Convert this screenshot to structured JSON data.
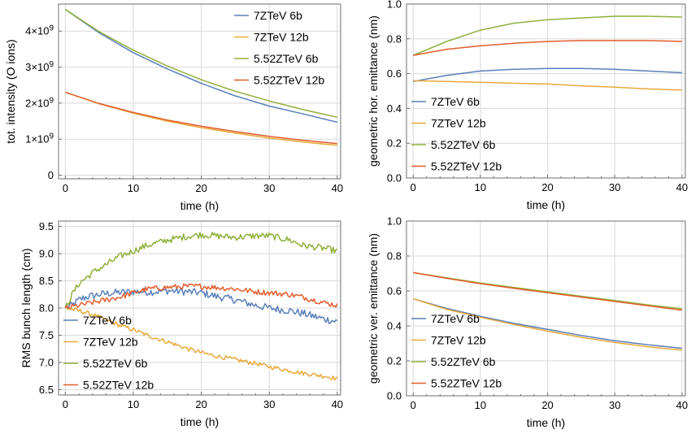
{
  "chart_data": [
    {
      "type": "line",
      "xlabel": "time (h)",
      "ylabel": "tot. intensity (O ions)",
      "xlim": [
        -1,
        40.5
      ],
      "ylim": [
        -0.1,
        4.75
      ],
      "xticks": [
        "0",
        "10",
        "20",
        "30",
        "40"
      ],
      "yticks": [
        {
          "v": 0,
          "label": "0"
        },
        {
          "v": 1,
          "label": "1×10"
        },
        {
          "v": 2,
          "label": "2×10"
        },
        {
          "v": 3,
          "label": "3×10"
        },
        {
          "v": 4,
          "label": "4×10"
        }
      ],
      "ytick_exponent": "9",
      "legend_position": "top-right",
      "series": [
        {
          "name": "7ZTeV 6b",
          "color": "#5b7fb9",
          "x": [
            0,
            5,
            10,
            15,
            20,
            25,
            30,
            35,
            40
          ],
          "y": [
            4.6,
            3.95,
            3.4,
            2.95,
            2.55,
            2.2,
            1.92,
            1.7,
            1.47
          ]
        },
        {
          "name": "7ZTeV 12b",
          "color": "#e8a93b",
          "x": [
            0,
            5,
            10,
            15,
            20,
            25,
            30,
            35,
            40
          ],
          "y": [
            2.3,
            1.98,
            1.72,
            1.5,
            1.32,
            1.17,
            1.03,
            0.92,
            0.83
          ]
        },
        {
          "name": "5.52ZTeV 6b",
          "color": "#8fb03a",
          "x": [
            0,
            5,
            10,
            15,
            20,
            25,
            30,
            35,
            40
          ],
          "y": [
            4.6,
            3.98,
            3.47,
            3.03,
            2.65,
            2.33,
            2.06,
            1.82,
            1.61
          ]
        },
        {
          "name": "5.52ZTeV 12b",
          "color": "#e35d2c",
          "x": [
            0,
            5,
            10,
            15,
            20,
            25,
            30,
            35,
            40
          ],
          "y": [
            2.3,
            1.99,
            1.74,
            1.53,
            1.36,
            1.21,
            1.08,
            0.97,
            0.88
          ]
        }
      ]
    },
    {
      "type": "line",
      "xlabel": "time (h)",
      "ylabel": "geometric hor. emittance (nm)",
      "xlim": [
        -1,
        40.5
      ],
      "ylim": [
        0,
        1.0
      ],
      "xticks": [
        "0",
        "10",
        "20",
        "30",
        "40"
      ],
      "yticks": [
        {
          "v": 0,
          "label": "0.0"
        },
        {
          "v": 0.2,
          "label": "0.2"
        },
        {
          "v": 0.4,
          "label": "0.4"
        },
        {
          "v": 0.6,
          "label": "0.6"
        },
        {
          "v": 0.8,
          "label": "0.8"
        },
        {
          "v": 1.0,
          "label": "1.0"
        }
      ],
      "legend_position": "middle-left",
      "series": [
        {
          "name": "7ZTeV 6b",
          "color": "#5b7fb9",
          "x": [
            0,
            5,
            10,
            15,
            20,
            25,
            30,
            35,
            40
          ],
          "y": [
            0.555,
            0.59,
            0.615,
            0.625,
            0.63,
            0.63,
            0.625,
            0.615,
            0.605
          ]
        },
        {
          "name": "7ZTeV 12b",
          "color": "#e8a93b",
          "x": [
            0,
            5,
            10,
            15,
            20,
            25,
            30,
            35,
            40
          ],
          "y": [
            0.56,
            0.555,
            0.55,
            0.545,
            0.54,
            0.53,
            0.522,
            0.512,
            0.505
          ]
        },
        {
          "name": "5.52ZTeV 6b",
          "color": "#8fb03a",
          "x": [
            0,
            5,
            10,
            15,
            20,
            25,
            30,
            35,
            40
          ],
          "y": [
            0.705,
            0.785,
            0.85,
            0.89,
            0.91,
            0.92,
            0.93,
            0.93,
            0.925
          ]
        },
        {
          "name": "5.52ZTeV 12b",
          "color": "#e35d2c",
          "x": [
            0,
            5,
            10,
            15,
            20,
            25,
            30,
            35,
            40
          ],
          "y": [
            0.705,
            0.74,
            0.76,
            0.775,
            0.785,
            0.79,
            0.79,
            0.79,
            0.785
          ]
        }
      ]
    },
    {
      "type": "line",
      "xlabel": "time (h)",
      "ylabel": "RMS bunch length (cm)",
      "xlim": [
        -1,
        40.5
      ],
      "ylim": [
        6.4,
        9.6
      ],
      "xticks": [
        "0",
        "10",
        "20",
        "30",
        "40"
      ],
      "yticks": [
        {
          "v": 6.5,
          "label": "6.5"
        },
        {
          "v": 7.0,
          "label": "7.0"
        },
        {
          "v": 7.5,
          "label": "7.5"
        },
        {
          "v": 8.0,
          "label": "8.0"
        },
        {
          "v": 8.5,
          "label": "8.5"
        },
        {
          "v": 9.0,
          "label": "9.0"
        },
        {
          "v": 9.5,
          "label": "9.5"
        }
      ],
      "legend_position": "lower-left",
      "series": [
        {
          "name": "7ZTeV 6b",
          "color": "#5b7fb9",
          "x": [
            0,
            1,
            2,
            3,
            5,
            7,
            10,
            13,
            15,
            18,
            20,
            22,
            25,
            28,
            30,
            33,
            35,
            38,
            40
          ],
          "y": [
            8.0,
            8.05,
            8.15,
            8.2,
            8.25,
            8.28,
            8.3,
            8.3,
            8.32,
            8.3,
            8.28,
            8.22,
            8.15,
            8.05,
            8.0,
            7.95,
            7.9,
            7.8,
            7.75
          ],
          "noise": 0.07
        },
        {
          "name": "7ZTeV 12b",
          "color": "#e8a93b",
          "x": [
            0,
            2,
            4,
            6,
            8,
            10,
            12,
            15,
            18,
            20,
            22,
            25,
            28,
            30,
            33,
            35,
            38,
            40
          ],
          "y": [
            8.0,
            7.95,
            7.88,
            7.78,
            7.68,
            7.6,
            7.5,
            7.38,
            7.25,
            7.18,
            7.12,
            7.05,
            6.98,
            6.92,
            6.85,
            6.8,
            6.75,
            6.7
          ],
          "noise": 0.04
        },
        {
          "name": "5.52ZTeV 6b",
          "color": "#8fb03a",
          "x": [
            0,
            1,
            2,
            4,
            6,
            8,
            10,
            12,
            15,
            18,
            20,
            22,
            25,
            28,
            30,
            33,
            35,
            38,
            40
          ],
          "y": [
            8.0,
            8.25,
            8.45,
            8.65,
            8.8,
            8.95,
            9.05,
            9.15,
            9.25,
            9.32,
            9.35,
            9.33,
            9.3,
            9.33,
            9.33,
            9.25,
            9.15,
            9.1,
            9.05
          ],
          "noise": 0.06
        },
        {
          "name": "5.52ZTeV 12b",
          "color": "#e35d2c",
          "x": [
            0,
            2,
            4,
            6,
            8,
            10,
            12,
            15,
            18,
            20,
            22,
            25,
            28,
            30,
            33,
            35,
            38,
            40
          ],
          "y": [
            8.0,
            8.05,
            8.1,
            8.15,
            8.2,
            8.28,
            8.35,
            8.38,
            8.4,
            8.4,
            8.38,
            8.35,
            8.3,
            8.28,
            8.25,
            8.2,
            8.1,
            8.05
          ],
          "noise": 0.05
        }
      ]
    },
    {
      "type": "line",
      "xlabel": "time (h)",
      "ylabel": "geometric ver. emittance (nm)",
      "xlim": [
        -1,
        40.5
      ],
      "ylim": [
        0,
        1.0
      ],
      "xticks": [
        "0",
        "10",
        "20",
        "30",
        "40"
      ],
      "yticks": [
        {
          "v": 0,
          "label": "0.0"
        },
        {
          "v": 0.2,
          "label": "0.2"
        },
        {
          "v": 0.4,
          "label": "0.4"
        },
        {
          "v": 0.6,
          "label": "0.6"
        },
        {
          "v": 0.8,
          "label": "0.8"
        },
        {
          "v": 1.0,
          "label": "1.0"
        }
      ],
      "legend_position": "lower-left",
      "series": [
        {
          "name": "7ZTeV 6b",
          "color": "#5b7fb9",
          "x": [
            0,
            5,
            10,
            15,
            20,
            25,
            30,
            35,
            40
          ],
          "y": [
            0.555,
            0.5,
            0.455,
            0.415,
            0.38,
            0.345,
            0.315,
            0.292,
            0.272
          ]
        },
        {
          "name": "7ZTeV 12b",
          "color": "#e8a93b",
          "x": [
            0,
            5,
            10,
            15,
            20,
            25,
            30,
            35,
            40
          ],
          "y": [
            0.555,
            0.495,
            0.45,
            0.408,
            0.37,
            0.335,
            0.305,
            0.28,
            0.262
          ]
        },
        {
          "name": "5.52ZTeV 6b",
          "color": "#8fb03a",
          "x": [
            0,
            5,
            10,
            15,
            20,
            25,
            30,
            35,
            40
          ],
          "y": [
            0.705,
            0.675,
            0.645,
            0.62,
            0.595,
            0.57,
            0.545,
            0.52,
            0.498
          ]
        },
        {
          "name": "5.52ZTeV 12b",
          "color": "#e35d2c",
          "x": [
            0,
            5,
            10,
            15,
            20,
            25,
            30,
            35,
            40
          ],
          "y": [
            0.705,
            0.672,
            0.642,
            0.615,
            0.59,
            0.565,
            0.54,
            0.515,
            0.49
          ]
        }
      ]
    }
  ]
}
